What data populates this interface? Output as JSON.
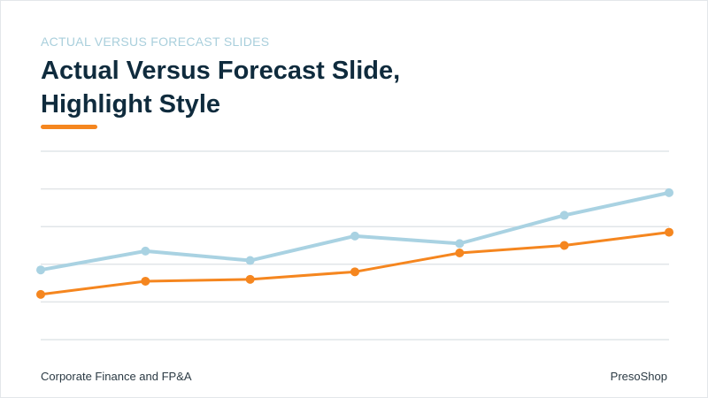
{
  "slide": {
    "eyebrow": "ACTUAL VERSUS FORECAST SLIDES",
    "title_line1": "Actual Versus Forecast Slide,",
    "title_line2": "Highlight Style",
    "footer_left": "Corporate Finance and FP&A",
    "footer_right": "PresoShop"
  },
  "colors": {
    "accent": "#f5861f",
    "forecast_line": "#a9d2e2",
    "title": "#0f2b3d",
    "gridline": "#e1e5e8"
  },
  "chart_data": {
    "type": "line",
    "x": [
      1,
      2,
      3,
      4,
      5,
      6,
      7
    ],
    "grid": true,
    "legend": "none",
    "ylim": [
      0,
      5
    ],
    "series": [
      {
        "values": [
          1.85,
          2.35,
          2.1,
          2.75,
          2.55,
          3.3,
          3.9
        ],
        "color": "#a9d2e2"
      },
      {
        "values": [
          1.2,
          1.55,
          1.6,
          1.8,
          2.3,
          2.5,
          2.85
        ],
        "color": "#f5861f"
      }
    ]
  }
}
